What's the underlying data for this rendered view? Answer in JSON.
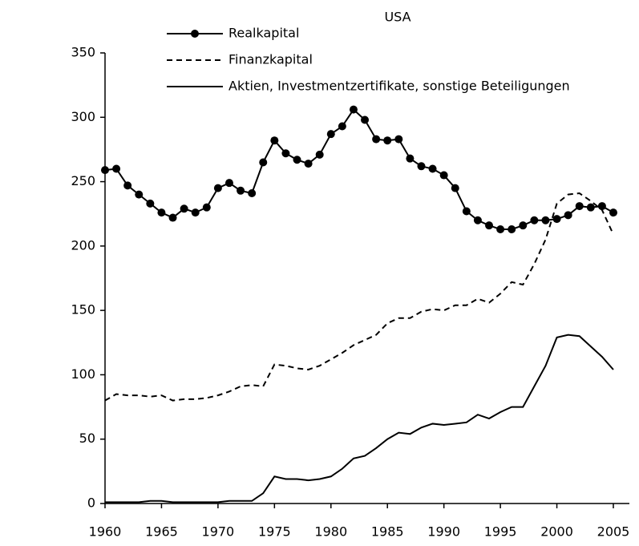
{
  "chart_data": {
    "type": "line",
    "title": "USA",
    "x": [
      1960,
      1961,
      1962,
      1963,
      1964,
      1965,
      1966,
      1967,
      1968,
      1969,
      1970,
      1971,
      1972,
      1973,
      1974,
      1975,
      1976,
      1977,
      1978,
      1979,
      1980,
      1981,
      1982,
      1983,
      1984,
      1985,
      1986,
      1987,
      1988,
      1989,
      1990,
      1991,
      1992,
      1993,
      1994,
      1995,
      1996,
      1997,
      1998,
      1999,
      2000,
      2001,
      2002,
      2003,
      2004,
      2005
    ],
    "series": [
      {
        "name": "Realkapital",
        "color": "#000000",
        "marker": true,
        "dashed": false,
        "values": [
          259,
          260,
          247,
          240,
          233,
          226,
          222,
          229,
          226,
          230,
          245,
          249,
          243,
          241,
          265,
          282,
          272,
          267,
          264,
          271,
          287,
          293,
          306,
          298,
          283,
          282,
          283,
          268,
          262,
          260,
          255,
          245,
          227,
          220,
          216,
          213,
          213,
          216,
          220,
          220,
          221,
          224,
          231,
          230,
          231,
          226
        ]
      },
      {
        "name": "Finanzkapital",
        "color": "#000000",
        "marker": false,
        "dashed": true,
        "values": [
          80,
          85,
          84,
          84,
          83,
          84,
          80,
          81,
          81,
          82,
          84,
          87,
          91,
          92,
          91,
          108,
          107,
          105,
          104,
          107,
          112,
          117,
          123,
          127,
          131,
          140,
          144,
          144,
          149,
          151,
          150,
          154,
          154,
          159,
          156,
          163,
          172,
          170,
          186,
          205,
          233,
          240,
          241,
          235,
          228,
          209
        ]
      },
      {
        "name": "Aktien, Investmentzertifikate, sonstige Beteiligungen",
        "color": "#000000",
        "marker": false,
        "dashed": false,
        "values": [
          1,
          1,
          1,
          1,
          2,
          2,
          1,
          1,
          1,
          1,
          1,
          2,
          2,
          2,
          8,
          21,
          19,
          19,
          18,
          19,
          21,
          27,
          35,
          37,
          43,
          50,
          55,
          54,
          59,
          62,
          61,
          62,
          63,
          69,
          66,
          71,
          75,
          75,
          91,
          107,
          129,
          131,
          130,
          122,
          114,
          104
        ]
      }
    ],
    "xlim": [
      1960,
      2005
    ],
    "xticks": [
      1960,
      1965,
      1970,
      1975,
      1980,
      1985,
      1990,
      1995,
      2000,
      2005
    ],
    "ylim": [
      0,
      350
    ],
    "yticks": [
      0,
      50,
      100,
      150,
      200,
      250,
      300,
      350
    ],
    "grid": false
  }
}
